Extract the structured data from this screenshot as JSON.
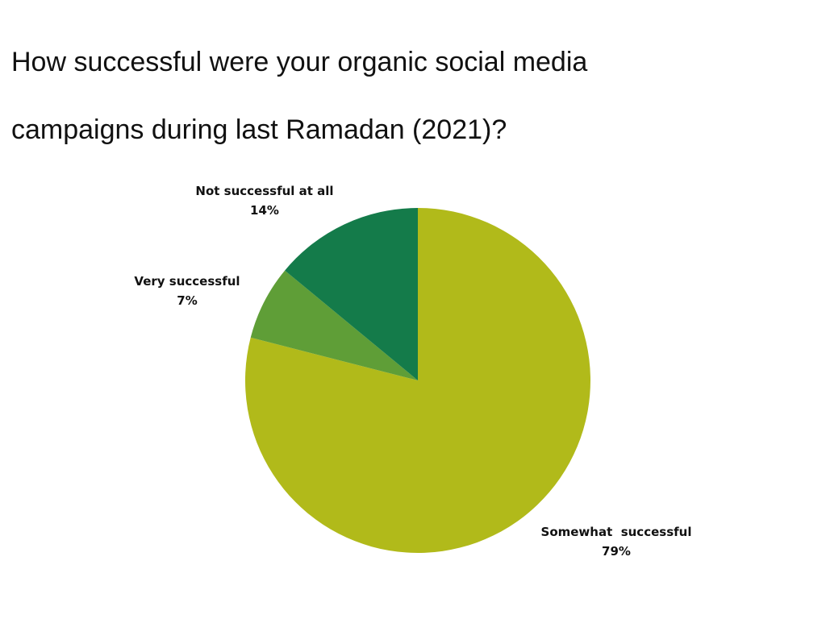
{
  "chart_data": {
    "type": "pie",
    "title": "How successful were your organic social media campaigns during last Ramadan (2021)?",
    "title_lines": [
      "How successful were your organic social media",
      "campaigns during last Ramadan (2021)?"
    ],
    "slices": [
      {
        "label": "Somewhat  successful",
        "value": 79,
        "value_label": "79%",
        "color": "#b1ba1a"
      },
      {
        "label": "Very successful",
        "value": 7,
        "value_label": "7%",
        "color": "#5f9e37"
      },
      {
        "label": "Not successful at all",
        "value": 14,
        "value_label": "14%",
        "color": "#147b4a"
      }
    ],
    "start": "12 o'clock",
    "direction": "clockwise",
    "legend": "none"
  }
}
